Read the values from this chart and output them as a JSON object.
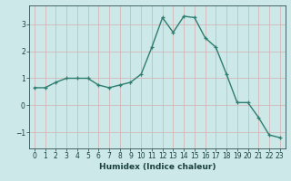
{
  "x": [
    0,
    1,
    2,
    3,
    4,
    5,
    6,
    7,
    8,
    9,
    10,
    11,
    12,
    13,
    14,
    15,
    16,
    17,
    18,
    19,
    20,
    21,
    22,
    23
  ],
  "y": [
    0.65,
    0.65,
    0.85,
    1.0,
    1.0,
    1.0,
    0.75,
    0.65,
    0.75,
    0.85,
    1.15,
    2.15,
    3.25,
    2.7,
    3.3,
    3.25,
    2.5,
    2.15,
    1.15,
    0.1,
    0.1,
    -0.45,
    -1.1,
    -1.2
  ],
  "line_color": "#2e7d6e",
  "marker": "+",
  "marker_size": 3,
  "xlabel": "Humidex (Indice chaleur)",
  "xlim": [
    -0.5,
    23.5
  ],
  "ylim": [
    -1.6,
    3.7
  ],
  "yticks": [
    -1,
    0,
    1,
    2,
    3
  ],
  "xticks": [
    0,
    1,
    2,
    3,
    4,
    5,
    6,
    7,
    8,
    9,
    10,
    11,
    12,
    13,
    14,
    15,
    16,
    17,
    18,
    19,
    20,
    21,
    22,
    23
  ],
  "bg_color": "#cce8e8",
  "grid_color": "#d4b8b8",
  "axis_color": "#2e5050",
  "text_color": "#1a4040",
  "label_fontsize": 6.5,
  "tick_fontsize": 5.5
}
